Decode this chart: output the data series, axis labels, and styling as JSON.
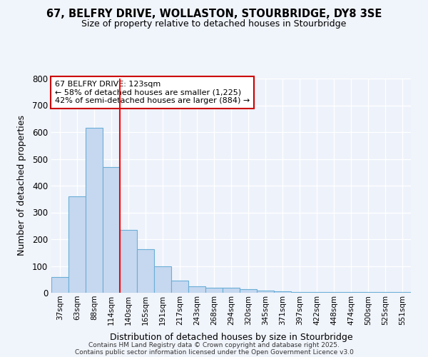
{
  "title_line1": "67, BELFRY DRIVE, WOLLASTON, STOURBRIDGE, DY8 3SE",
  "title_line2": "Size of property relative to detached houses in Stourbridge",
  "xlabel": "Distribution of detached houses by size in Stourbridge",
  "ylabel": "Number of detached properties",
  "categories": [
    "37sqm",
    "63sqm",
    "88sqm",
    "114sqm",
    "140sqm",
    "165sqm",
    "191sqm",
    "217sqm",
    "243sqm",
    "268sqm",
    "294sqm",
    "320sqm",
    "345sqm",
    "371sqm",
    "397sqm",
    "422sqm",
    "448sqm",
    "474sqm",
    "500sqm",
    "525sqm",
    "551sqm"
  ],
  "values": [
    60,
    360,
    615,
    470,
    235,
    163,
    98,
    45,
    25,
    18,
    18,
    13,
    8,
    5,
    3,
    3,
    3,
    2,
    2,
    2,
    4
  ],
  "bar_color": "#c5d8f0",
  "bar_edge_color": "#6aaed6",
  "background_color": "#f0f4fb",
  "plot_bg_color": "#edf2fb",
  "grid_color": "#ffffff",
  "red_line_x": 3.5,
  "annotation_text_line1": "67 BELFRY DRIVE: 123sqm",
  "annotation_text_line2": "← 58% of detached houses are smaller (1,225)",
  "annotation_text_line3": "42% of semi-detached houses are larger (884) →",
  "annotation_box_color": "#ffffff",
  "annotation_box_edge": "#cc0000",
  "footer_line1": "Contains HM Land Registry data © Crown copyright and database right 2025.",
  "footer_line2": "Contains public sector information licensed under the Open Government Licence v3.0",
  "ylim": [
    0,
    800
  ],
  "yticks": [
    0,
    100,
    200,
    300,
    400,
    500,
    600,
    700,
    800
  ]
}
